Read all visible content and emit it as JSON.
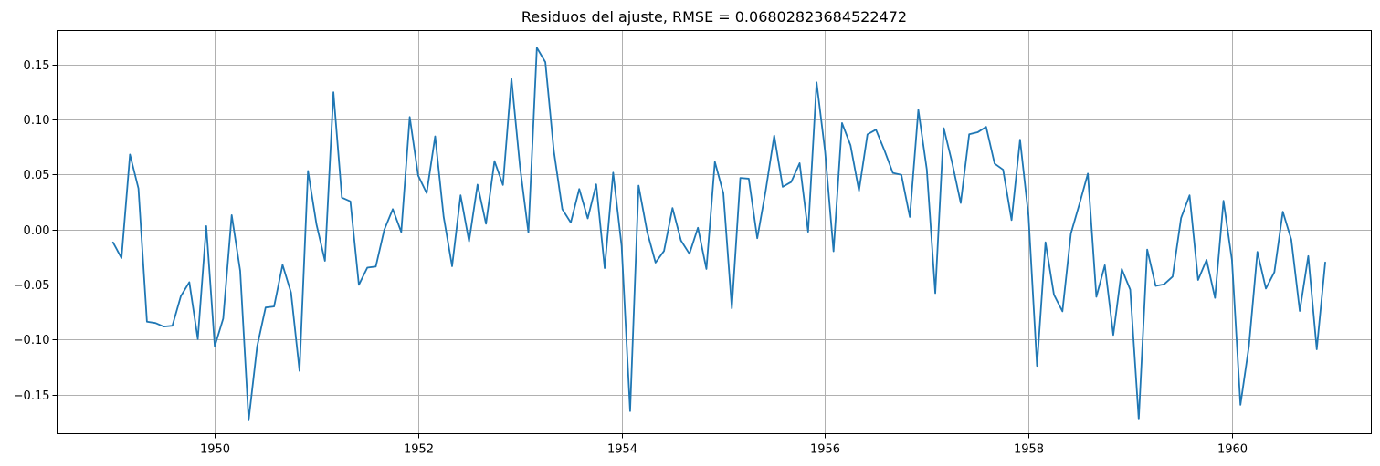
{
  "chart_data": {
    "type": "line",
    "title": "Residuos del ajuste, RMSE = 0.06802823684522472",
    "xlabel": "",
    "ylabel": "",
    "xlim": [
      1948.45,
      1961.37
    ],
    "ylim": [
      -0.1855,
      0.181
    ],
    "grid": true,
    "legend": "none",
    "xticks": [
      1950,
      1952,
      1954,
      1956,
      1958,
      1960
    ],
    "xtick_labels": [
      "1950",
      "1952",
      "1954",
      "1956",
      "1958",
      "1960"
    ],
    "yticks": [
      -0.15,
      -0.1,
      -0.05,
      0.0,
      0.05,
      0.1,
      0.15
    ],
    "ytick_labels": [
      "−0.15",
      "−0.10",
      "−0.05",
      "0.00",
      "0.05",
      "0.10",
      "0.15"
    ],
    "series": [
      {
        "color": "#1f77b4",
        "x_start": "1949-01",
        "frequency": "monthly",
        "values": [
          -0.0116,
          -0.0259,
          0.0683,
          0.0374,
          -0.0837,
          -0.0849,
          -0.0882,
          -0.0874,
          -0.0605,
          -0.0478,
          -0.0995,
          0.0032,
          -0.1061,
          -0.0808,
          0.0132,
          -0.0375,
          -0.1734,
          -0.1063,
          -0.0708,
          -0.0699,
          -0.032,
          -0.0573,
          -0.1284,
          0.0534,
          0.0048,
          -0.0284,
          0.1249,
          0.0291,
          0.0257,
          -0.0502,
          -0.0346,
          -0.0336,
          -0.0001,
          0.0186,
          -0.0022,
          0.1024,
          0.0491,
          0.0332,
          0.0848,
          0.0118,
          -0.0333,
          0.0312,
          -0.0107,
          0.0409,
          0.0053,
          0.0623,
          0.0406,
          0.1374,
          0.0579,
          -0.0026,
          0.1654,
          0.1523,
          0.0716,
          0.0186,
          0.0064,
          0.0369,
          0.0102,
          0.0411,
          -0.035,
          0.0518,
          -0.015,
          -0.165,
          0.04,
          -0.0016,
          -0.03,
          -0.0194,
          0.0196,
          -0.0099,
          -0.022,
          0.0017,
          -0.0358,
          0.0616,
          0.0331,
          -0.0716,
          0.047,
          0.0463,
          -0.0078,
          0.0357,
          0.0855,
          0.0389,
          0.0433,
          0.0604,
          -0.0019,
          0.1339,
          0.0711,
          -0.0197,
          0.0969,
          0.0767,
          0.0353,
          0.0866,
          0.0909,
          0.0721,
          0.0515,
          0.0498,
          0.0115,
          0.1089,
          0.0548,
          -0.0578,
          0.0923,
          0.0605,
          0.0242,
          0.0867,
          0.0885,
          0.0934,
          0.06,
          0.0545,
          0.0087,
          0.0818,
          0.0124,
          -0.1239,
          -0.0115,
          -0.0592,
          -0.0743,
          -0.0035,
          0.0231,
          0.0509,
          -0.0611,
          -0.0324,
          -0.0958,
          -0.0358,
          -0.0546,
          -0.1725,
          -0.0181,
          -0.0512,
          -0.0497,
          -0.0427,
          0.0107,
          0.0312,
          -0.0458,
          -0.0275,
          -0.0621,
          0.0262,
          -0.0278,
          -0.1593,
          -0.106,
          -0.0202,
          -0.0536,
          -0.0387,
          0.0163,
          -0.0091,
          -0.074,
          -0.024,
          -0.1088,
          -0.0298
        ]
      }
    ]
  }
}
